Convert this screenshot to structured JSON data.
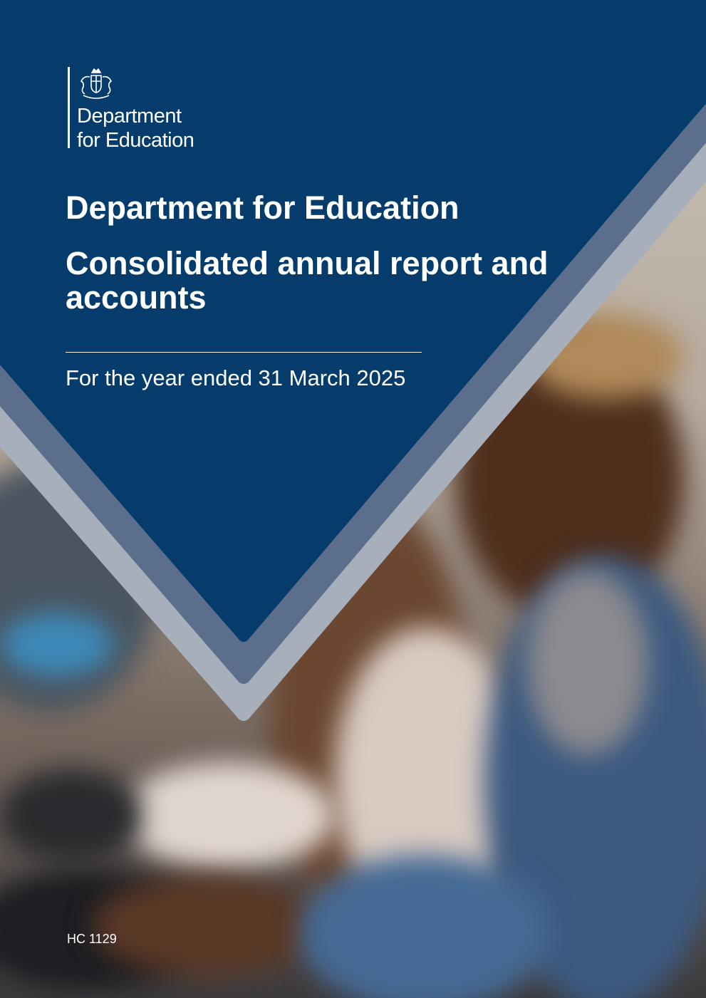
{
  "logo": {
    "line1": "Department",
    "line2": "for Education",
    "emblem": "royal-coat-of-arms"
  },
  "title": "Department for Education",
  "subtitle": "Consolidated annual report and accounts",
  "period": "For the year ended 31 March 2025",
  "reference": "HC 1129",
  "colors": {
    "navy": "#053c6c",
    "slate": "#5b6f8c",
    "light_grey": "#a7b0ba"
  }
}
